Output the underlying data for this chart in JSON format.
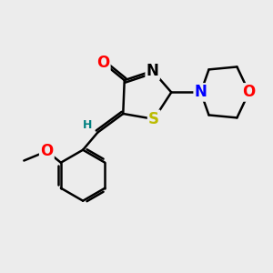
{
  "background_color": "#ececec",
  "atom_colors": {
    "C": "#000000",
    "N": "#0000ff",
    "O": "#ff0000",
    "S": "#bbbb00",
    "H": "#008080"
  },
  "bond_color": "#000000",
  "bond_width": 1.8,
  "font_size_atom": 12,
  "font_size_small": 9
}
